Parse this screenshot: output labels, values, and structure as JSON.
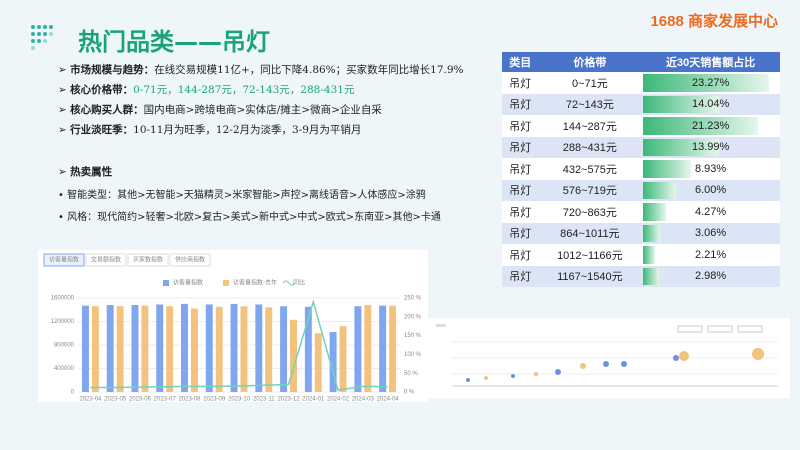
{
  "header": {
    "title": "热门品类——吊灯",
    "brand": "1688 商家发展中心"
  },
  "bullets": [
    {
      "label": "市场规模与趋势：",
      "text": "在线交易规模11亿+，同比下降4.86%；买家数年同比增长17.9%"
    },
    {
      "label": "核心价格带：",
      "text": "0-71元，144-287元，72-143元，288-431元"
    },
    {
      "label": "核心购买人群：",
      "text": "国内电商>跨境电商>实体店/摊主>微商>企业自采"
    },
    {
      "label": "行业淡旺季：",
      "text": "10-11月为旺季，12-2月为淡季，3-9月为平销月"
    }
  ],
  "attributes": {
    "title": "热卖属性",
    "items": [
      "智能类型：其他>无智能>天猫精灵>米家智能>声控>离线语音>人体感应>涂鸦",
      "风格：现代简约>轻奢>北欧>复古>美式>新中式>中式>欧式>东南亚>其他>卡通"
    ]
  },
  "table": {
    "columns": [
      "类目",
      "价格带",
      "近30天销售额占比"
    ],
    "rows": [
      {
        "category": "吊灯",
        "price": "0~71元",
        "share": 23.27,
        "share_label": "23.27%"
      },
      {
        "category": "吊灯",
        "price": "72~143元",
        "share": 14.04,
        "share_label": "14.04%"
      },
      {
        "category": "吊灯",
        "price": "144~287元",
        "share": 21.23,
        "share_label": "21.23%"
      },
      {
        "category": "吊灯",
        "price": "288~431元",
        "share": 13.99,
        "share_label": "13.99%"
      },
      {
        "category": "吊灯",
        "price": "432~575元",
        "share": 8.93,
        "share_label": "8.93%"
      },
      {
        "category": "吊灯",
        "price": "576~719元",
        "share": 6.0,
        "share_label": "6.00%"
      },
      {
        "category": "吊灯",
        "price": "720~863元",
        "share": 4.27,
        "share_label": "4.27%"
      },
      {
        "category": "吊灯",
        "price": "864~1011元",
        "share": 3.06,
        "share_label": "3.06%"
      },
      {
        "category": "吊灯",
        "price": "1012~1166元",
        "share": 2.21,
        "share_label": "2.21%"
      },
      {
        "category": "吊灯",
        "price": "1167~1540元",
        "share": 2.98,
        "share_label": "2.98%"
      }
    ]
  },
  "chart_data": {
    "type": "bar",
    "tabs": [
      "访客量指数",
      "交易额指数",
      "买家数指数",
      "供应商指数"
    ],
    "categories": [
      "2023-04",
      "2023-05",
      "2023-06",
      "2023-07",
      "2023-08",
      "2023-09",
      "2023-10",
      "2023-11",
      "2023-12",
      "2024-01",
      "2024-02",
      "2024-03",
      "2024-04"
    ],
    "series": [
      {
        "name": "访客量指数",
        "color": "#7fa6ef",
        "values": [
          1470000,
          1480000,
          1480000,
          1490000,
          1500000,
          1490000,
          1500000,
          1490000,
          1460000,
          1450000,
          1020000,
          1460000,
          1470000
        ]
      },
      {
        "name": "访客量指数-去年",
        "color": "#f2c27e",
        "values": [
          1460000,
          1460000,
          1470000,
          1460000,
          1420000,
          1450000,
          1460000,
          1440000,
          1230000,
          1000000,
          1120000,
          1480000,
          1470000
        ]
      },
      {
        "name": "同比",
        "color": "#6fd4b8",
        "type": "line",
        "axis": "y2",
        "values": [
          12,
          12,
          13,
          14,
          15,
          15,
          16,
          18,
          20,
          240,
          5,
          15,
          14
        ]
      }
    ],
    "ylim": [
      0,
      1600000
    ],
    "yticks": [
      0,
      400000,
      800000,
      1200000,
      1600000
    ],
    "y2lim": [
      0,
      250
    ],
    "y2ticks": [
      {
        "value": 0,
        "label": "0 %"
      },
      {
        "value": 50,
        "label": "50 %"
      },
      {
        "value": 100,
        "label": "100 %"
      },
      {
        "value": 150,
        "label": "150 %"
      },
      {
        "value": 200,
        "label": "200 %"
      },
      {
        "value": 250,
        "label": "250 %"
      }
    ],
    "grid": true
  }
}
